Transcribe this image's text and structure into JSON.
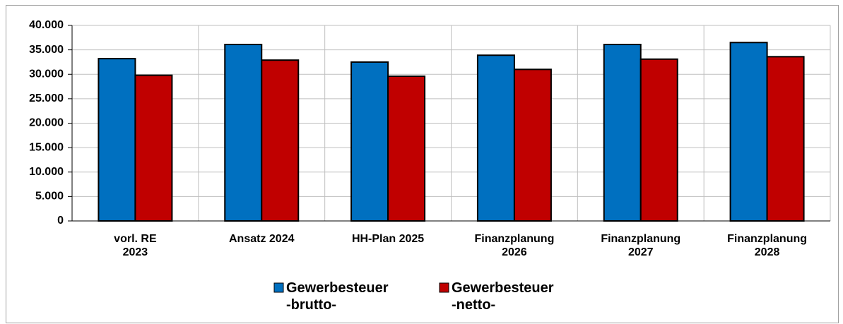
{
  "chart_data": {
    "type": "bar",
    "categories": [
      "vorl. RE\n2023",
      "Ansatz 2024",
      "HH-Plan 2025",
      "Finanzplanung\n2026",
      "Finanzplanung\n2027",
      "Finanzplanung\n2028"
    ],
    "series": [
      {
        "name": "Gewerbesteuer\n-brutto-",
        "color": "#0070c0",
        "values": [
          33200,
          36100,
          32500,
          33900,
          36100,
          36500
        ]
      },
      {
        "name": "Gewerbesteuer\n-netto-",
        "color": "#c00000",
        "values": [
          29800,
          32900,
          29600,
          31000,
          33100,
          33600
        ]
      }
    ],
    "ylim": [
      0,
      40000
    ],
    "yticks": [
      0,
      {
        "value": 5000,
        "label": "5.000"
      },
      {
        "value": 10000,
        "label": "10.000"
      },
      {
        "value": 15000,
        "label": "15.000"
      },
      {
        "value": 20000,
        "label": "20.000"
      },
      {
        "value": 25000,
        "label": "25.000"
      },
      {
        "value": 30000,
        "label": "30.000"
      },
      {
        "value": 35000,
        "label": "35.000"
      },
      {
        "value": 40000,
        "label": "40.000"
      }
    ],
    "grid": true,
    "legend": "bottom"
  }
}
